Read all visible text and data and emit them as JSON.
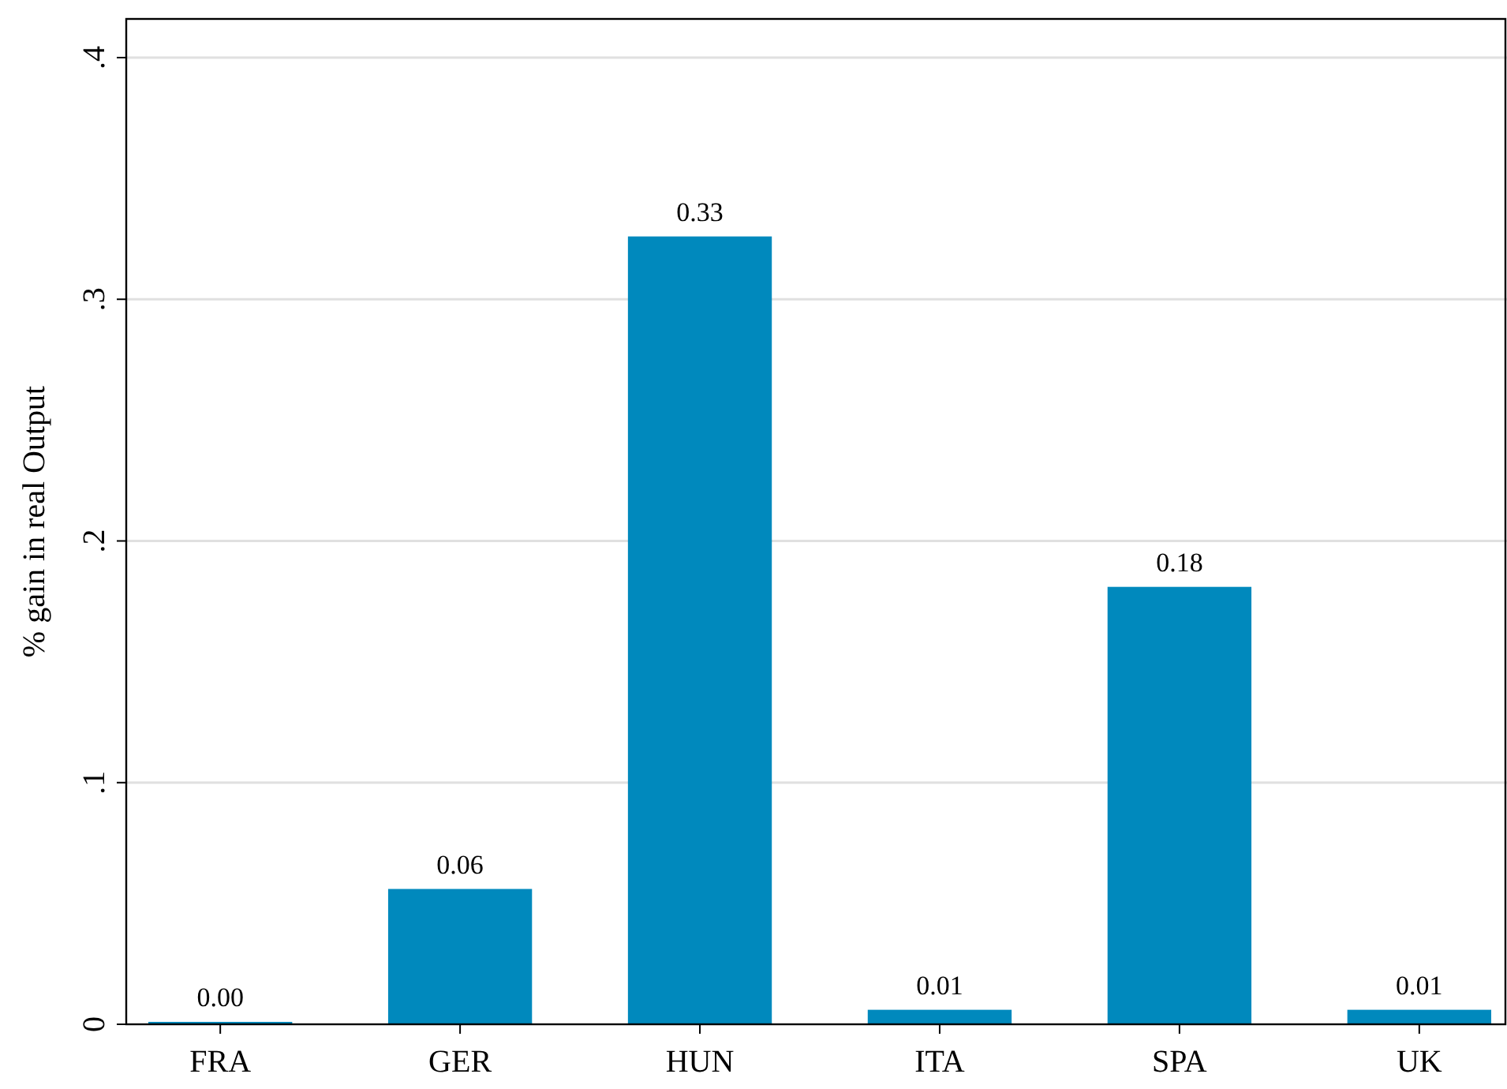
{
  "chart_data": {
    "type": "bar",
    "ylabel": "% gain in real Output",
    "categories": [
      "FRA",
      "GER",
      "HUN",
      "ITA",
      "SPA",
      "UK"
    ],
    "values": [
      0.001,
      0.056,
      0.326,
      0.006,
      0.181,
      0.006
    ],
    "value_labels": [
      "0.00",
      "0.06",
      "0.33",
      "0.01",
      "0.18",
      "0.01"
    ],
    "color": "#0089bd",
    "ylim": [
      0,
      0.416
    ],
    "yticks": [
      {
        "value": 0,
        "label": "0"
      },
      {
        "value": 0.1,
        "label": ".1"
      },
      {
        "value": 0.2,
        "label": ".2"
      },
      {
        "value": 0.3,
        "label": ".3"
      },
      {
        "value": 0.4,
        "label": ".4"
      }
    ],
    "grid": "y"
  }
}
